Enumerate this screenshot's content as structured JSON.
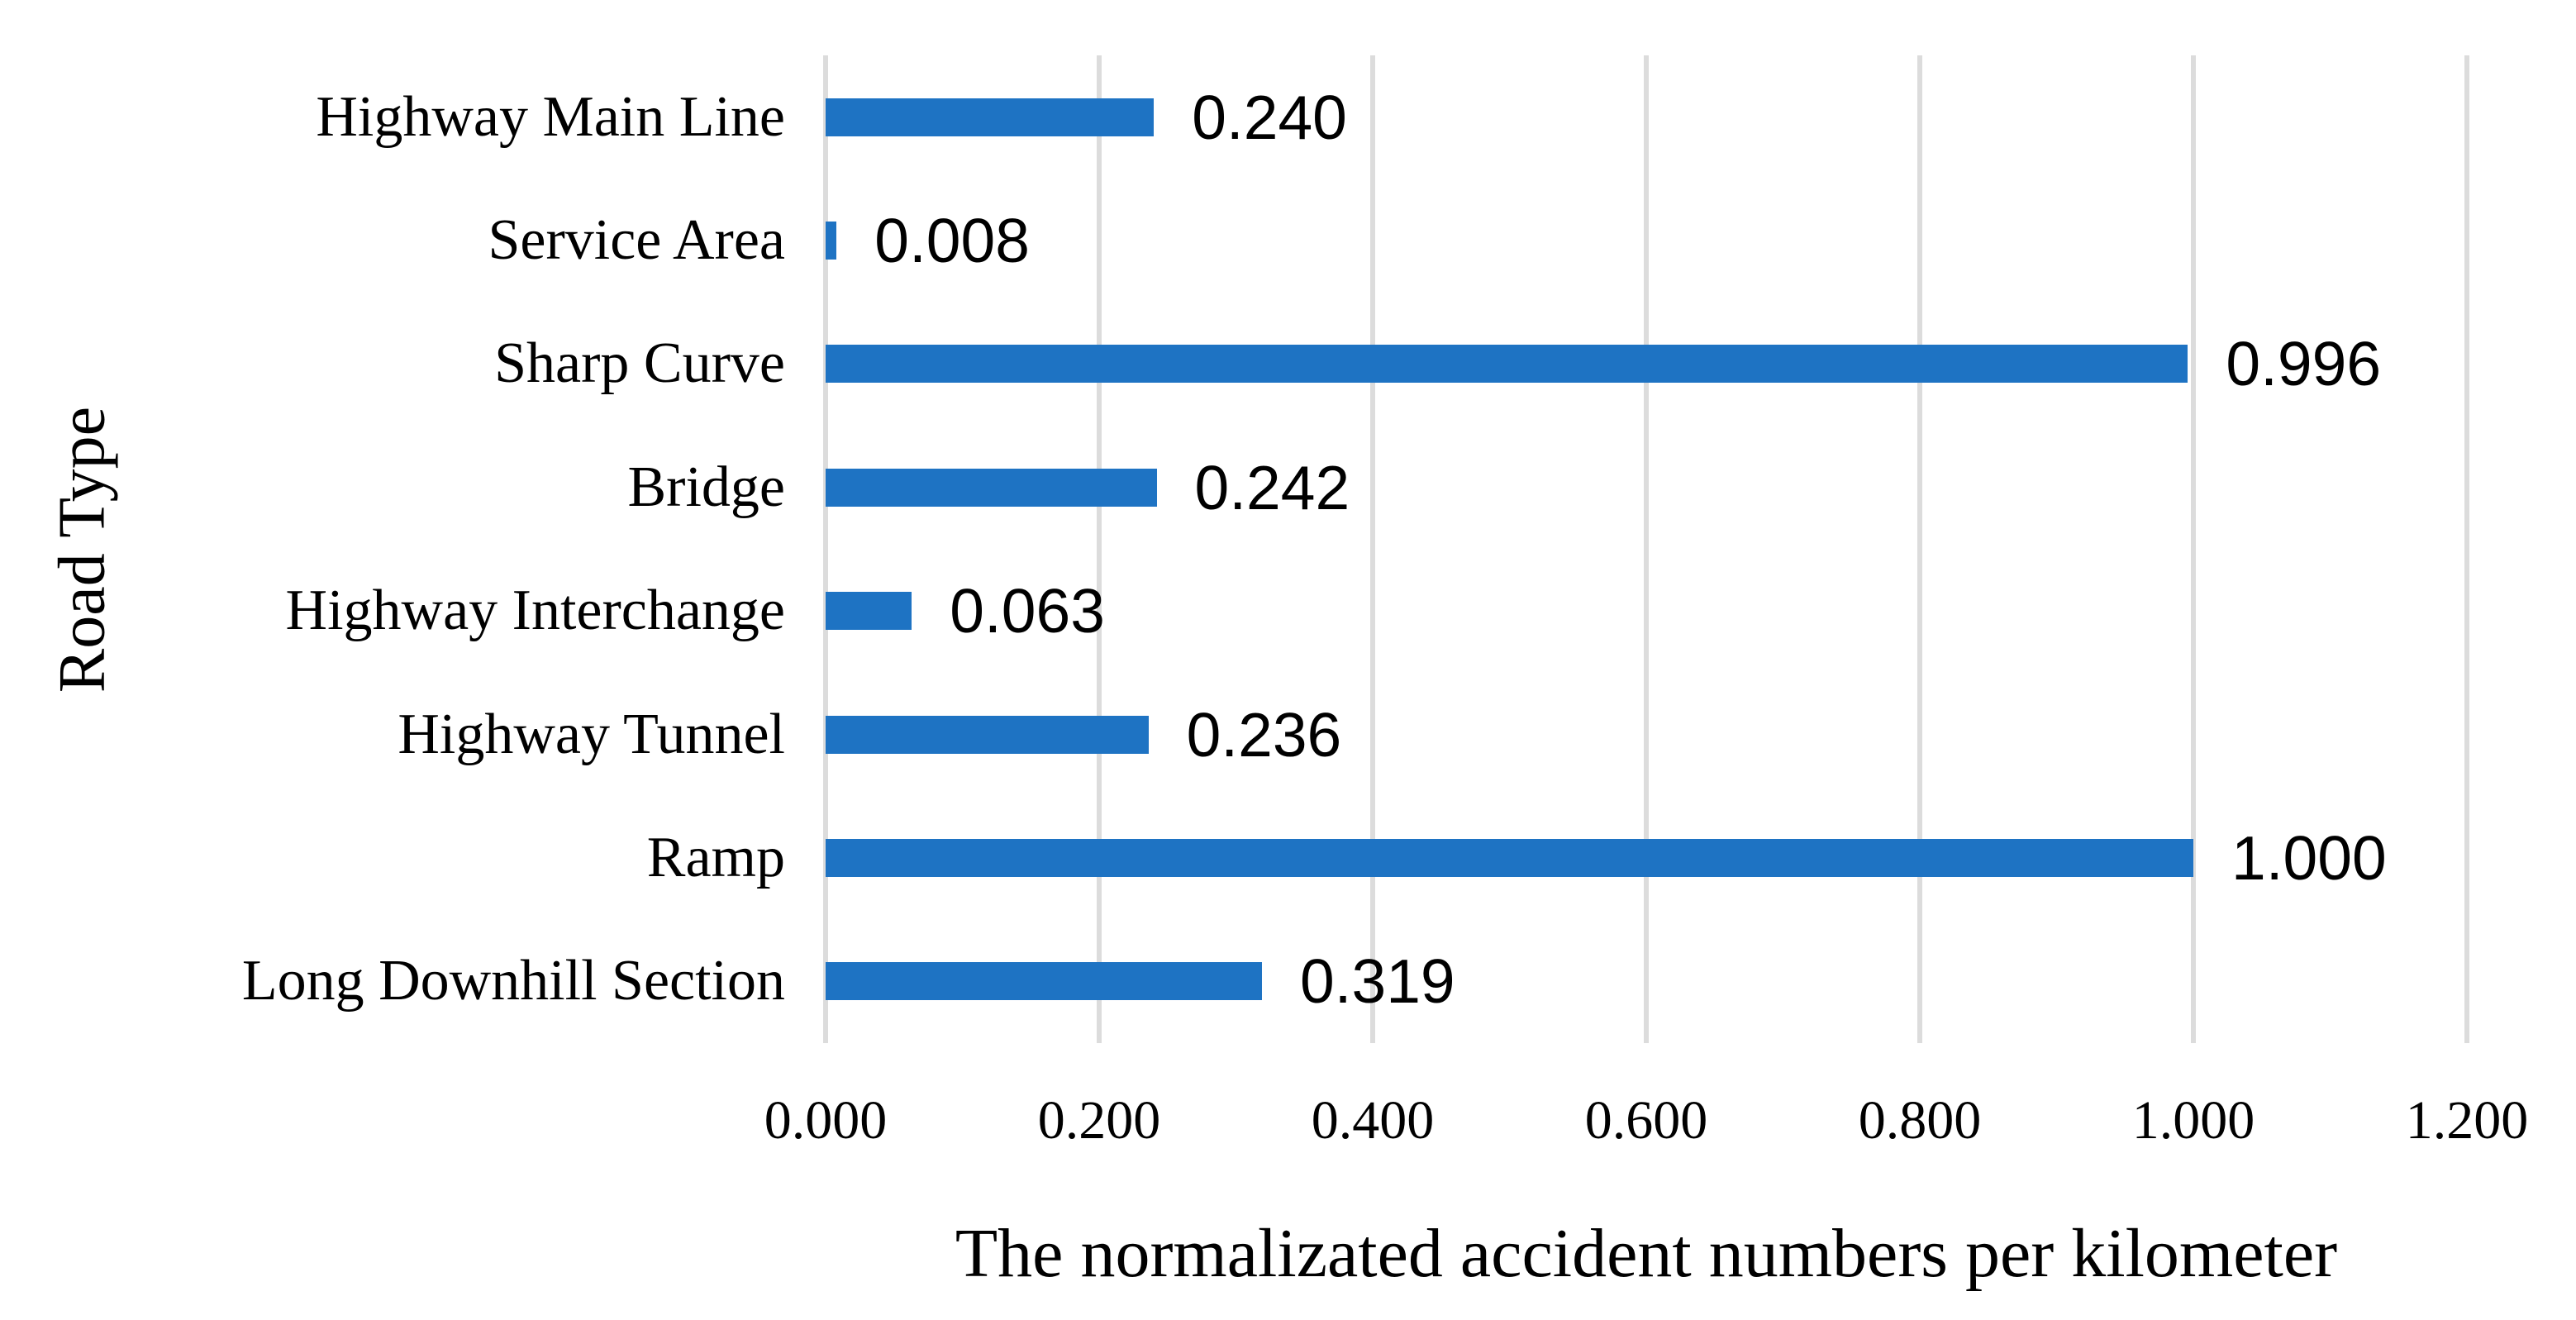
{
  "chart_data": {
    "type": "bar",
    "orientation": "horizontal",
    "title": "",
    "categories": [
      "Highway Main Line",
      "Service Area",
      "Sharp Curve",
      "Bridge",
      "Highway Interchange",
      "Highway Tunnel",
      "Ramp",
      "Long Downhill Section"
    ],
    "values": [
      0.24,
      0.008,
      0.996,
      0.242,
      0.063,
      0.236,
      1.0,
      0.319
    ],
    "value_labels": [
      "0.240",
      "0.008",
      "0.996",
      "0.242",
      "0.063",
      "0.236",
      "1.000",
      "0.319"
    ],
    "xlabel": "The normalizated accident numbers per kilometer",
    "ylabel": "Road Type",
    "xlim": [
      0.0,
      1.2
    ],
    "xtick_values": [
      0.0,
      0.2,
      0.4,
      0.6,
      0.8,
      1.0,
      1.2
    ],
    "xtick_labels": [
      "0.000",
      "0.200",
      "0.400",
      "0.600",
      "0.800",
      "1.000",
      "1.200"
    ],
    "grid": "vertical-gridlines-on",
    "legend": "none",
    "bar_color": "#1E73C3",
    "gridline_color": "#DCDCDC",
    "text_color": "#000000",
    "background_color": "#FFFFFF"
  }
}
